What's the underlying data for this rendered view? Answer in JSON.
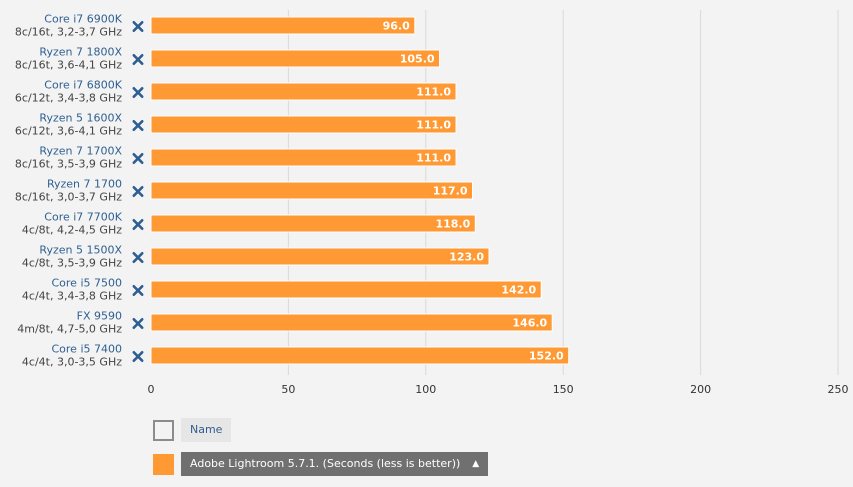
{
  "chart_data": {
    "type": "bar",
    "orientation": "horizontal",
    "categories": [
      {
        "name": "Core i7 6900K",
        "spec": "8c/16t, 3,2-3,7 GHz"
      },
      {
        "name": "Ryzen 7 1800X",
        "spec": "8c/16t, 3,6-4,1 GHz"
      },
      {
        "name": "Core i7 6800K",
        "spec": "6c/12t, 3,4-3,8 GHz"
      },
      {
        "name": "Ryzen 5 1600X",
        "spec": "6c/12t, 3,6-4,1 GHz"
      },
      {
        "name": "Ryzen 7 1700X",
        "spec": "8c/16t, 3,5-3,9 GHz"
      },
      {
        "name": "Ryzen 7 1700",
        "spec": "8c/16t, 3,0-3,7 GHz"
      },
      {
        "name": "Core i7 7700K",
        "spec": "4c/8t, 4,2-4,5 GHz"
      },
      {
        "name": "Ryzen 5 1500X",
        "spec": "4c/8t, 3,5-3,9 GHz"
      },
      {
        "name": "Core i5 7500",
        "spec": "4c/4t, 3,4-3,8 GHz"
      },
      {
        "name": "FX 9590",
        "spec": "4m/8t, 4,7-5,0 GHz"
      },
      {
        "name": "Core i5 7400",
        "spec": "4c/4t, 3,0-3,5 GHz"
      }
    ],
    "series": [
      {
        "name": "Adobe Lightroom 5.7.1. (Seconds (less is better))",
        "color": "#ff9933",
        "values": [
          96.0,
          105.0,
          111.0,
          111.0,
          111.0,
          117.0,
          118.0,
          123.0,
          142.0,
          146.0,
          152.0
        ]
      }
    ],
    "value_labels": [
      "96.0",
      "105.0",
      "111.0",
      "111.0",
      "111.0",
      "117.0",
      "118.0",
      "123.0",
      "142.0",
      "146.0",
      "152.0"
    ],
    "xlim": [
      0,
      250
    ],
    "xticks": [
      0,
      50,
      100,
      150,
      200,
      250
    ],
    "xtick_labels": [
      "0",
      "50",
      "100",
      "150",
      "200",
      "250"
    ],
    "grid": true,
    "legend_position": "bottom-left",
    "remove_icon": "close-icon"
  },
  "legend": {
    "name_label": "Name",
    "series_label": "Adobe Lightroom 5.7.1. (Seconds (less is better))",
    "sort_icon": "▲"
  },
  "colors": {
    "bar": "#ff9933",
    "category_text": "#2f5f91",
    "spec_text": "#444444",
    "remove_icon": "#2f5f91",
    "gridline": "#d9d9d9",
    "background": "#f3f3f3"
  }
}
